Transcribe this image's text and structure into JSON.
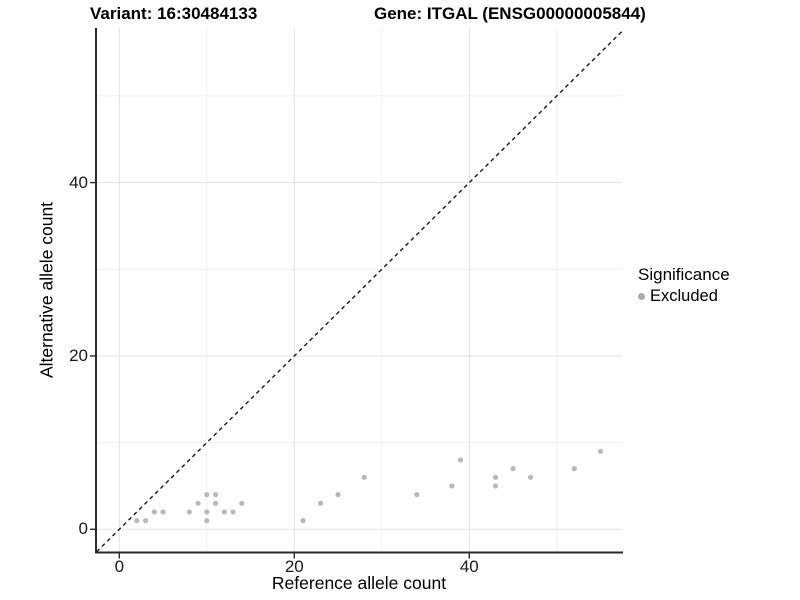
{
  "header": {
    "variant_title": "Variant: 16:30484133",
    "gene_title": "Gene: ITGAL (ENSG00000005844)"
  },
  "chart_data": {
    "type": "scatter",
    "xlabel": "Reference allele count",
    "ylabel": "Alternative allele count",
    "x_ticks": [
      0,
      20,
      40
    ],
    "y_ticks": [
      0,
      20,
      40
    ],
    "x_minor_ticks": [
      10,
      30,
      50
    ],
    "y_minor_ticks": [
      10,
      30,
      50
    ],
    "xlim": [
      -2.6,
      57.5
    ],
    "ylim": [
      -2.65,
      57.9
    ],
    "grid": true,
    "identity_line": true,
    "legend": {
      "title": "Significance",
      "position": "right",
      "items": [
        {
          "label": "Excluded",
          "color": "#ababab"
        }
      ]
    },
    "series": [
      {
        "name": "Excluded",
        "color": "#b9b9b9",
        "points": [
          [
            2,
            1
          ],
          [
            3,
            1
          ],
          [
            4,
            2
          ],
          [
            5,
            2
          ],
          [
            8,
            2
          ],
          [
            9,
            3
          ],
          [
            10,
            1
          ],
          [
            10,
            2
          ],
          [
            10,
            4
          ],
          [
            11,
            3
          ],
          [
            11,
            4
          ],
          [
            12,
            2
          ],
          [
            13,
            2
          ],
          [
            14,
            3
          ],
          [
            21,
            1
          ],
          [
            23,
            3
          ],
          [
            25,
            4
          ],
          [
            28,
            6
          ],
          [
            34,
            4
          ],
          [
            38,
            5
          ],
          [
            39,
            8
          ],
          [
            43,
            5
          ],
          [
            43,
            6
          ],
          [
            45,
            7
          ],
          [
            47,
            6
          ],
          [
            52,
            7
          ],
          [
            55,
            9
          ]
        ]
      }
    ]
  },
  "colors": {
    "background": "#ffffff",
    "axis_line": "#2b2b2b",
    "major_grid": "#e2e2e2",
    "minor_grid": "#efefef",
    "dashed_line": "#1a1a1a",
    "point": "#b9b9b9",
    "tick_text": "#1a1a1a"
  }
}
